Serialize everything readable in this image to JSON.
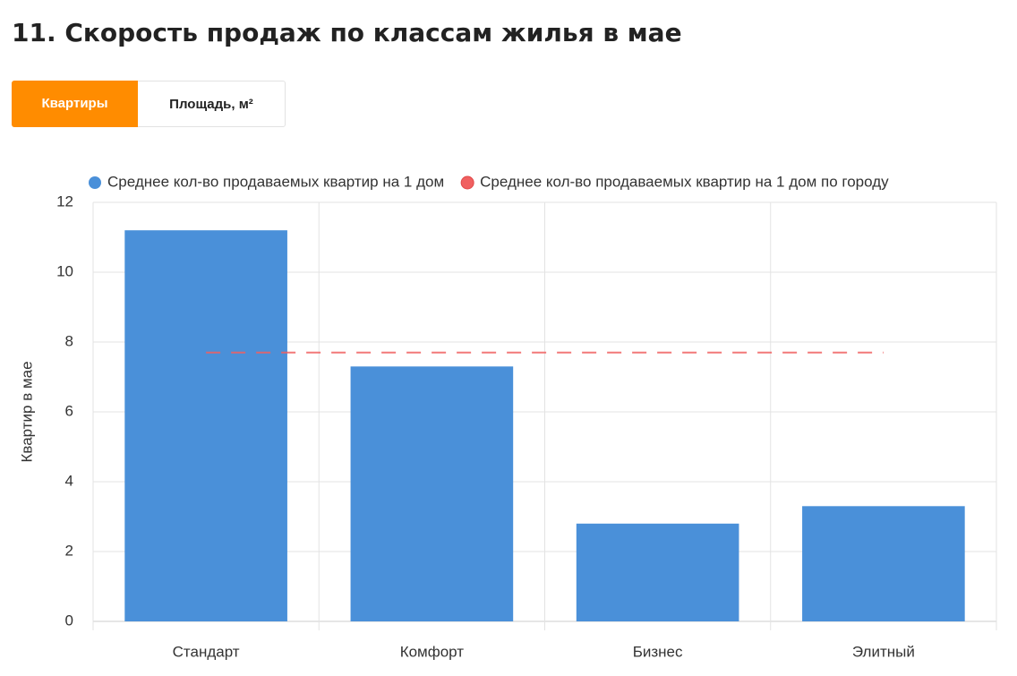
{
  "tabs": [
    "Квартиры",
    "Площадь, м²"
  ],
  "chart_data": {
    "type": "bar",
    "title": "11. Скорость продаж по классам жилья в мае",
    "y_label": "Квартир в мае",
    "categories": [
      "Стандарт",
      "Комфорт",
      "Бизнес",
      "Элитный"
    ],
    "series": [
      {
        "name": "Среднее кол-во продаваемых квартир на 1 дом",
        "color": "#4a90d9",
        "type": "bar",
        "values": [
          11.2,
          7.3,
          2.8,
          3.3
        ]
      },
      {
        "name": "Среднее кол-во продаваемых квартир на 1 дом по городу",
        "color": "#f06060",
        "type": "line",
        "values": [
          7.7,
          7.7,
          7.7,
          7.7
        ]
      }
    ],
    "ylim": [
      0,
      12
    ],
    "yticks": [
      0,
      2,
      4,
      6,
      8,
      10,
      12
    ],
    "grid": true,
    "legend": "top"
  }
}
